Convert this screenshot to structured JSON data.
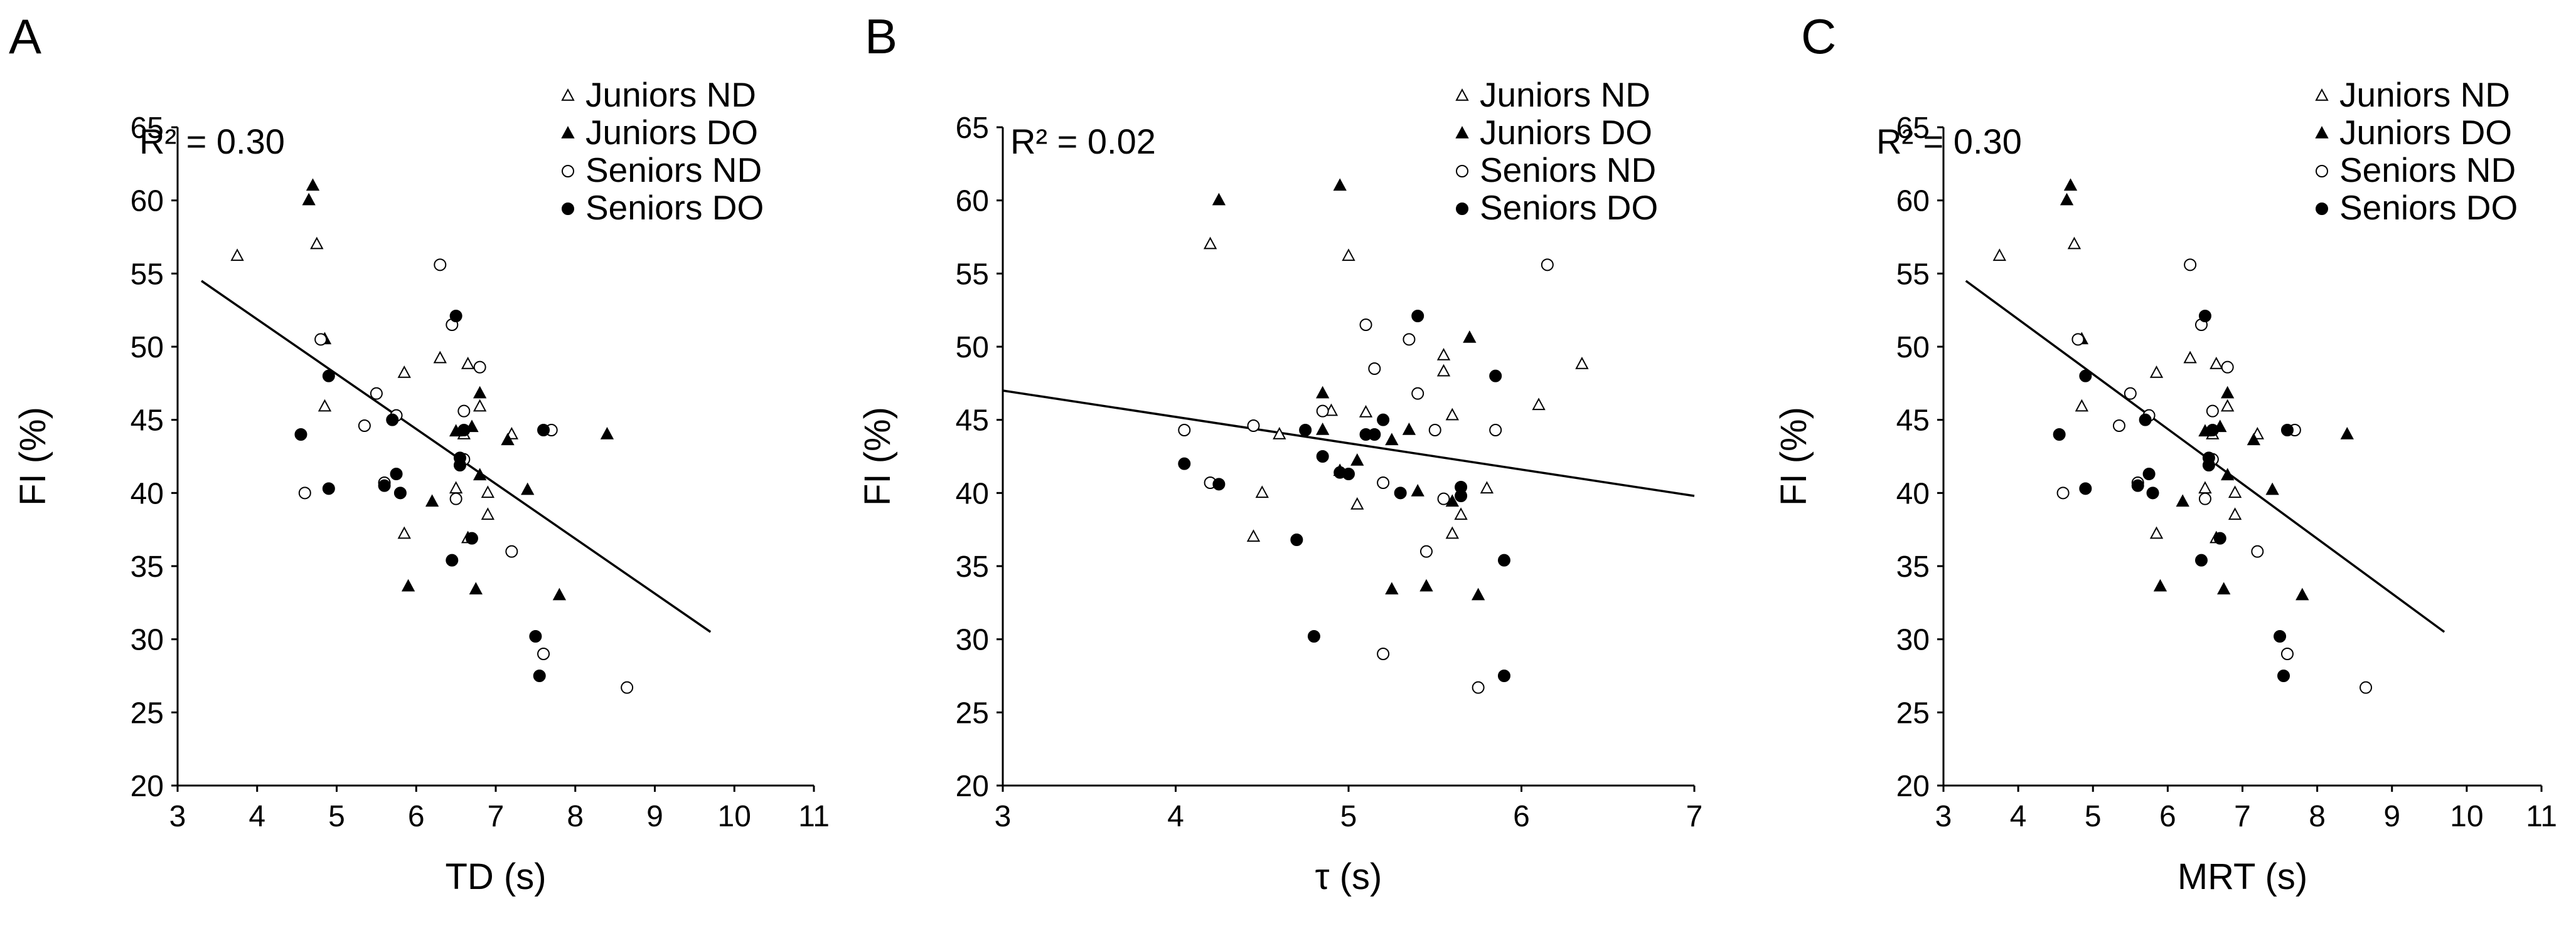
{
  "colors": {
    "ink": "#000000",
    "background": "#ffffff"
  },
  "chart_data": [
    {
      "panel": "A",
      "type": "scatter",
      "xlabel": "TD (s)",
      "ylabel": "FI (%)",
      "xlim": [
        3,
        11
      ],
      "ylim": [
        20,
        65
      ],
      "xticks": [
        3,
        4,
        5,
        6,
        7,
        8,
        9,
        10,
        11
      ],
      "yticks": [
        20,
        25,
        30,
        35,
        40,
        45,
        50,
        55,
        60,
        65
      ],
      "r2_label": "R² = 0.30",
      "trendline": {
        "x": [
          3.3,
          9.7
        ],
        "y": [
          54.5,
          30.5
        ]
      },
      "legend": [
        "Juniors ND",
        "Juniors DO",
        "Seniors ND",
        "Seniors DO"
      ],
      "series": [
        {
          "name": "Juniors ND",
          "marker": "triangle-open",
          "points": [
            [
              3.75,
              56.2
            ],
            [
              4.75,
              57.0
            ],
            [
              4.85,
              45.9
            ],
            [
              5.85,
              48.2
            ],
            [
              5.85,
              37.2
            ],
            [
              6.3,
              49.2
            ],
            [
              6.5,
              40.3
            ],
            [
              6.6,
              44.0
            ],
            [
              6.65,
              48.8
            ],
            [
              6.65,
              36.9
            ],
            [
              6.8,
              45.9
            ],
            [
              6.9,
              38.5
            ],
            [
              6.9,
              40.0
            ],
            [
              7.2,
              44.0
            ]
          ]
        },
        {
          "name": "Juniors DO",
          "marker": "triangle-filled",
          "points": [
            [
              4.7,
              61.0
            ],
            [
              4.65,
              60.0
            ],
            [
              4.85,
              50.5
            ],
            [
              5.9,
              33.6
            ],
            [
              6.2,
              39.4
            ],
            [
              6.5,
              44.2
            ],
            [
              6.7,
              44.5
            ],
            [
              6.75,
              33.4
            ],
            [
              6.8,
              46.8
            ],
            [
              7.15,
              43.6
            ],
            [
              7.4,
              40.2
            ],
            [
              7.8,
              33.0
            ],
            [
              8.4,
              44.0
            ],
            [
              6.8,
              41.2
            ]
          ]
        },
        {
          "name": "Seniors ND",
          "marker": "circle-open",
          "points": [
            [
              4.6,
              40.0
            ],
            [
              4.8,
              50.5
            ],
            [
              5.35,
              44.6
            ],
            [
              5.5,
              46.8
            ],
            [
              5.75,
              45.3
            ],
            [
              6.3,
              55.6
            ],
            [
              6.45,
              51.5
            ],
            [
              6.5,
              39.6
            ],
            [
              6.6,
              45.6
            ],
            [
              6.8,
              48.6
            ],
            [
              7.2,
              36.0
            ],
            [
              7.7,
              44.3
            ],
            [
              7.6,
              29.0
            ],
            [
              8.65,
              26.7
            ],
            [
              6.6,
              42.3
            ],
            [
              5.6,
              40.7
            ]
          ]
        },
        {
          "name": "Seniors DO",
          "marker": "circle-filled",
          "points": [
            [
              4.55,
              44.0
            ],
            [
              4.9,
              48.0
            ],
            [
              4.9,
              40.3
            ],
            [
              5.6,
              40.5
            ],
            [
              5.7,
              45.0
            ],
            [
              5.75,
              41.3
            ],
            [
              5.8,
              40.0
            ],
            [
              6.5,
              52.1
            ],
            [
              6.55,
              42.4
            ],
            [
              6.55,
              41.9
            ],
            [
              6.6,
              44.3
            ],
            [
              6.7,
              36.9
            ],
            [
              6.45,
              35.4
            ],
            [
              7.5,
              30.2
            ],
            [
              7.55,
              27.5
            ],
            [
              7.6,
              44.3
            ]
          ]
        }
      ]
    },
    {
      "panel": "B",
      "type": "scatter",
      "xlabel": "τ (s)",
      "ylabel": "FI (%)",
      "xlim": [
        3,
        7
      ],
      "ylim": [
        20,
        65
      ],
      "xticks": [
        3,
        4,
        5,
        6,
        7
      ],
      "yticks": [
        20,
        25,
        30,
        35,
        40,
        45,
        50,
        55,
        60,
        65
      ],
      "r2_label": "R² = 0.02",
      "trendline": {
        "x": [
          3.0,
          7.0
        ],
        "y": [
          47.0,
          39.8
        ]
      },
      "legend": [
        "Juniors ND",
        "Juniors DO",
        "Seniors ND",
        "Seniors DO"
      ],
      "series": [
        {
          "name": "Juniors ND",
          "marker": "triangle-open",
          "points": [
            [
              4.2,
              57.0
            ],
            [
              5.0,
              56.2
            ],
            [
              4.45,
              37.0
            ],
            [
              4.5,
              40.0
            ],
            [
              4.6,
              44.0
            ],
            [
              4.9,
              45.6
            ],
            [
              5.05,
              39.2
            ],
            [
              5.1,
              45.5
            ],
            [
              5.55,
              49.4
            ],
            [
              5.55,
              48.3
            ],
            [
              5.6,
              45.3
            ],
            [
              5.65,
              38.5
            ],
            [
              5.6,
              37.2
            ],
            [
              5.8,
              40.3
            ],
            [
              6.1,
              46.0
            ],
            [
              6.35,
              48.8
            ]
          ]
        },
        {
          "name": "Juniors DO",
          "marker": "triangle-filled",
          "points": [
            [
              4.25,
              60.0
            ],
            [
              4.95,
              61.0
            ],
            [
              4.85,
              46.8
            ],
            [
              4.85,
              44.3
            ],
            [
              4.95,
              41.5
            ],
            [
              5.05,
              42.2
            ],
            [
              5.25,
              33.4
            ],
            [
              5.35,
              44.3
            ],
            [
              5.4,
              40.1
            ],
            [
              5.45,
              33.6
            ],
            [
              5.6,
              39.4
            ],
            [
              5.7,
              50.6
            ],
            [
              5.75,
              33.0
            ],
            [
              5.25,
              43.6
            ]
          ]
        },
        {
          "name": "Seniors ND",
          "marker": "circle-open",
          "points": [
            [
              4.05,
              44.3
            ],
            [
              4.2,
              40.7
            ],
            [
              4.45,
              44.6
            ],
            [
              4.85,
              45.6
            ],
            [
              5.1,
              51.5
            ],
            [
              5.15,
              48.5
            ],
            [
              5.2,
              40.7
            ],
            [
              5.2,
              29.0
            ],
            [
              5.35,
              50.5
            ],
            [
              5.4,
              46.8
            ],
            [
              5.45,
              36.0
            ],
            [
              5.5,
              44.3
            ],
            [
              5.55,
              39.6
            ],
            [
              5.75,
              26.7
            ],
            [
              6.15,
              55.6
            ],
            [
              5.85,
              44.3
            ]
          ]
        },
        {
          "name": "Seniors DO",
          "marker": "circle-filled",
          "points": [
            [
              4.05,
              42.0
            ],
            [
              4.25,
              40.6
            ],
            [
              4.7,
              36.8
            ],
            [
              4.75,
              44.3
            ],
            [
              4.8,
              30.2
            ],
            [
              4.85,
              42.5
            ],
            [
              4.95,
              41.4
            ],
            [
              5.0,
              41.3
            ],
            [
              5.1,
              44.0
            ],
            [
              5.15,
              44.0
            ],
            [
              5.2,
              45.0
            ],
            [
              5.3,
              40.0
            ],
            [
              5.4,
              52.1
            ],
            [
              5.65,
              40.4
            ],
            [
              5.65,
              39.8
            ],
            [
              5.85,
              48.0
            ],
            [
              5.9,
              35.4
            ],
            [
              5.9,
              27.5
            ]
          ]
        }
      ]
    },
    {
      "panel": "C",
      "type": "scatter",
      "xlabel": "MRT (s)",
      "ylabel": "FI (%)",
      "xlim": [
        3,
        11
      ],
      "ylim": [
        20,
        65
      ],
      "xticks": [
        3,
        4,
        5,
        6,
        7,
        8,
        9,
        10,
        11
      ],
      "yticks": [
        20,
        25,
        30,
        35,
        40,
        45,
        50,
        55,
        60,
        65
      ],
      "r2_label": "R² = 0.30",
      "trendline": {
        "x": [
          3.3,
          9.7
        ],
        "y": [
          54.5,
          30.5
        ]
      },
      "legend": [
        "Juniors ND",
        "Juniors DO",
        "Seniors ND",
        "Seniors DO"
      ],
      "series": [
        {
          "name": "Juniors ND",
          "marker": "triangle-open",
          "points": [
            [
              3.75,
              56.2
            ],
            [
              4.75,
              57.0
            ],
            [
              4.85,
              45.9
            ],
            [
              5.85,
              48.2
            ],
            [
              5.85,
              37.2
            ],
            [
              6.3,
              49.2
            ],
            [
              6.5,
              40.3
            ],
            [
              6.6,
              44.0
            ],
            [
              6.65,
              48.8
            ],
            [
              6.65,
              36.9
            ],
            [
              6.8,
              45.9
            ],
            [
              6.9,
              38.5
            ],
            [
              6.9,
              40.0
            ],
            [
              7.2,
              44.0
            ]
          ]
        },
        {
          "name": "Juniors DO",
          "marker": "triangle-filled",
          "points": [
            [
              4.7,
              61.0
            ],
            [
              4.65,
              60.0
            ],
            [
              4.85,
              50.5
            ],
            [
              5.9,
              33.6
            ],
            [
              6.2,
              39.4
            ],
            [
              6.5,
              44.2
            ],
            [
              6.7,
              44.5
            ],
            [
              6.75,
              33.4
            ],
            [
              6.8,
              46.8
            ],
            [
              7.15,
              43.6
            ],
            [
              7.4,
              40.2
            ],
            [
              7.8,
              33.0
            ],
            [
              8.4,
              44.0
            ],
            [
              6.8,
              41.2
            ]
          ]
        },
        {
          "name": "Seniors ND",
          "marker": "circle-open",
          "points": [
            [
              4.6,
              40.0
            ],
            [
              4.8,
              50.5
            ],
            [
              5.35,
              44.6
            ],
            [
              5.5,
              46.8
            ],
            [
              5.75,
              45.3
            ],
            [
              6.3,
              55.6
            ],
            [
              6.45,
              51.5
            ],
            [
              6.5,
              39.6
            ],
            [
              6.6,
              45.6
            ],
            [
              6.8,
              48.6
            ],
            [
              7.2,
              36.0
            ],
            [
              7.7,
              44.3
            ],
            [
              7.6,
              29.0
            ],
            [
              8.65,
              26.7
            ],
            [
              6.6,
              42.3
            ],
            [
              5.6,
              40.7
            ]
          ]
        },
        {
          "name": "Seniors DO",
          "marker": "circle-filled",
          "points": [
            [
              4.55,
              44.0
            ],
            [
              4.9,
              48.0
            ],
            [
              4.9,
              40.3
            ],
            [
              5.6,
              40.5
            ],
            [
              5.7,
              45.0
            ],
            [
              5.75,
              41.3
            ],
            [
              5.8,
              40.0
            ],
            [
              6.5,
              52.1
            ],
            [
              6.55,
              42.4
            ],
            [
              6.55,
              41.9
            ],
            [
              6.6,
              44.3
            ],
            [
              6.7,
              36.9
            ],
            [
              6.45,
              35.4
            ],
            [
              7.5,
              30.2
            ],
            [
              7.55,
              27.5
            ],
            [
              7.6,
              44.3
            ]
          ]
        }
      ]
    }
  ]
}
